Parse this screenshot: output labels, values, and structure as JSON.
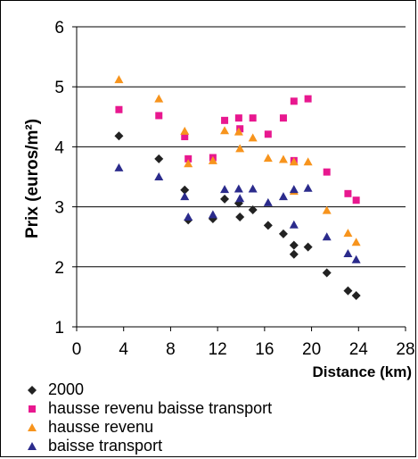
{
  "chart_data": {
    "type": "scatter",
    "title": "",
    "xlabel": "Distance (km)",
    "ylabel": "Prix (euros/m²)",
    "xlim": [
      0,
      28
    ],
    "ylim": [
      1,
      6
    ],
    "x_ticks": [
      "0",
      "4",
      "8",
      "12",
      "16",
      "20",
      "24",
      "28"
    ],
    "y_ticks": [
      "1",
      "2",
      "3",
      "4",
      "5",
      "6"
    ],
    "grid": "horizontal",
    "legend_position": "bottom",
    "series": [
      {
        "name": "2000",
        "marker": "diamond",
        "color": "#222222",
        "points": [
          [
            3.6,
            4.18
          ],
          [
            7.0,
            3.8
          ],
          [
            9.2,
            3.28
          ],
          [
            9.5,
            2.78
          ],
          [
            11.6,
            2.8
          ],
          [
            12.6,
            3.13
          ],
          [
            13.8,
            3.06
          ],
          [
            13.9,
            2.83
          ],
          [
            15.0,
            2.95
          ],
          [
            16.3,
            2.69
          ],
          [
            17.6,
            2.55
          ],
          [
            18.5,
            2.36
          ],
          [
            18.5,
            2.21
          ],
          [
            19.7,
            2.33
          ],
          [
            21.3,
            1.9
          ],
          [
            23.1,
            1.6
          ],
          [
            23.8,
            1.52
          ]
        ]
      },
      {
        "name": "hausse revenu baisse transport",
        "marker": "square",
        "color": "#e8188f",
        "points": [
          [
            3.6,
            4.62
          ],
          [
            7.0,
            4.52
          ],
          [
            9.2,
            4.17
          ],
          [
            9.5,
            3.8
          ],
          [
            11.6,
            3.82
          ],
          [
            12.6,
            4.44
          ],
          [
            13.8,
            4.48
          ],
          [
            13.9,
            4.3
          ],
          [
            15.0,
            4.48
          ],
          [
            16.3,
            4.21
          ],
          [
            17.6,
            4.48
          ],
          [
            18.5,
            4.76
          ],
          [
            18.5,
            3.77
          ],
          [
            19.7,
            4.8
          ],
          [
            21.3,
            3.58
          ],
          [
            23.1,
            3.22
          ],
          [
            23.8,
            3.11
          ]
        ]
      },
      {
        "name": "hausse revenu",
        "marker": "triangle",
        "color": "#f7941d",
        "points": [
          [
            3.6,
            5.12
          ],
          [
            7.0,
            4.8
          ],
          [
            9.2,
            4.26
          ],
          [
            9.5,
            3.72
          ],
          [
            11.6,
            3.77
          ],
          [
            12.6,
            4.27
          ],
          [
            13.8,
            4.25
          ],
          [
            13.9,
            3.97
          ],
          [
            15.0,
            4.15
          ],
          [
            16.3,
            3.81
          ],
          [
            17.6,
            3.79
          ],
          [
            18.5,
            3.75
          ],
          [
            18.5,
            3.26
          ],
          [
            19.7,
            3.75
          ],
          [
            21.3,
            2.94
          ],
          [
            23.1,
            2.56
          ],
          [
            23.8,
            2.41
          ]
        ]
      },
      {
        "name": "baisse transport",
        "marker": "triangle",
        "color": "#2b2b8c",
        "points": [
          [
            3.6,
            3.65
          ],
          [
            7.0,
            3.5
          ],
          [
            9.2,
            3.17
          ],
          [
            9.5,
            2.83
          ],
          [
            11.6,
            2.87
          ],
          [
            12.6,
            3.29
          ],
          [
            13.8,
            3.3
          ],
          [
            13.9,
            3.14
          ],
          [
            15.0,
            3.3
          ],
          [
            16.3,
            3.07
          ],
          [
            17.6,
            3.17
          ],
          [
            18.5,
            3.29
          ],
          [
            18.5,
            2.7
          ],
          [
            19.7,
            3.31
          ],
          [
            21.3,
            2.5
          ],
          [
            23.1,
            2.22
          ],
          [
            23.8,
            2.12
          ]
        ]
      }
    ]
  }
}
